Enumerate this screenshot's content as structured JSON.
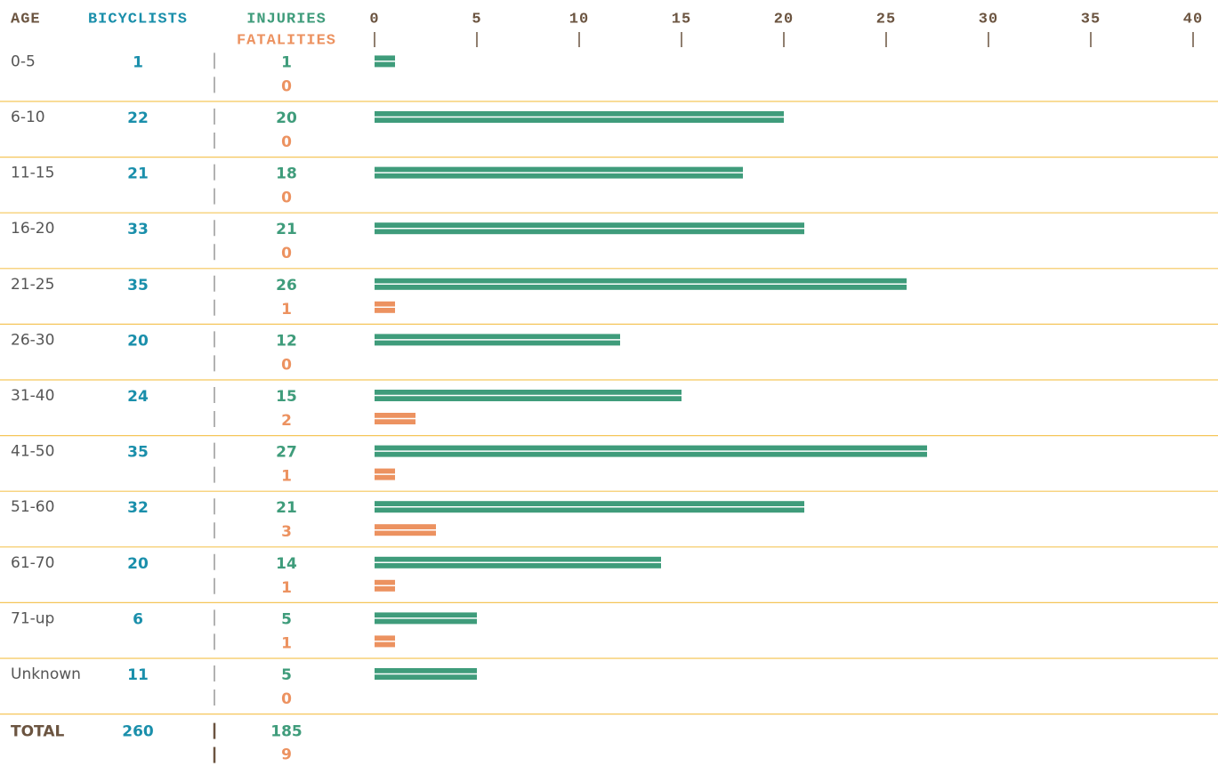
{
  "chart_data": {
    "type": "bar",
    "columns": [
      "AGE",
      "BICYCLISTS"
    ],
    "categories": [
      "0-5",
      "6-10",
      "11-15",
      "16-20",
      "21-25",
      "26-30",
      "31-40",
      "41-50",
      "51-60",
      "61-70",
      "71-up",
      "Unknown"
    ],
    "bicyclists": [
      1,
      22,
      21,
      33,
      35,
      20,
      24,
      35,
      32,
      20,
      6,
      11
    ],
    "series": [
      {
        "name": "INJURIES",
        "color": "#3f9c7b",
        "values": [
          1,
          20,
          18,
          21,
          26,
          12,
          15,
          27,
          21,
          14,
          5,
          5
        ]
      },
      {
        "name": "FATALITIES",
        "color": "#ec9260",
        "values": [
          0,
          0,
          0,
          0,
          1,
          0,
          2,
          1,
          3,
          1,
          1,
          0
        ]
      }
    ],
    "total": {
      "label": "TOTAL",
      "bicyclists": 260,
      "injuries": 185,
      "fatalities": 9
    },
    "xlim": [
      0,
      40
    ],
    "xticks": [
      0,
      5,
      10,
      15,
      20,
      25,
      30,
      35,
      40
    ]
  }
}
